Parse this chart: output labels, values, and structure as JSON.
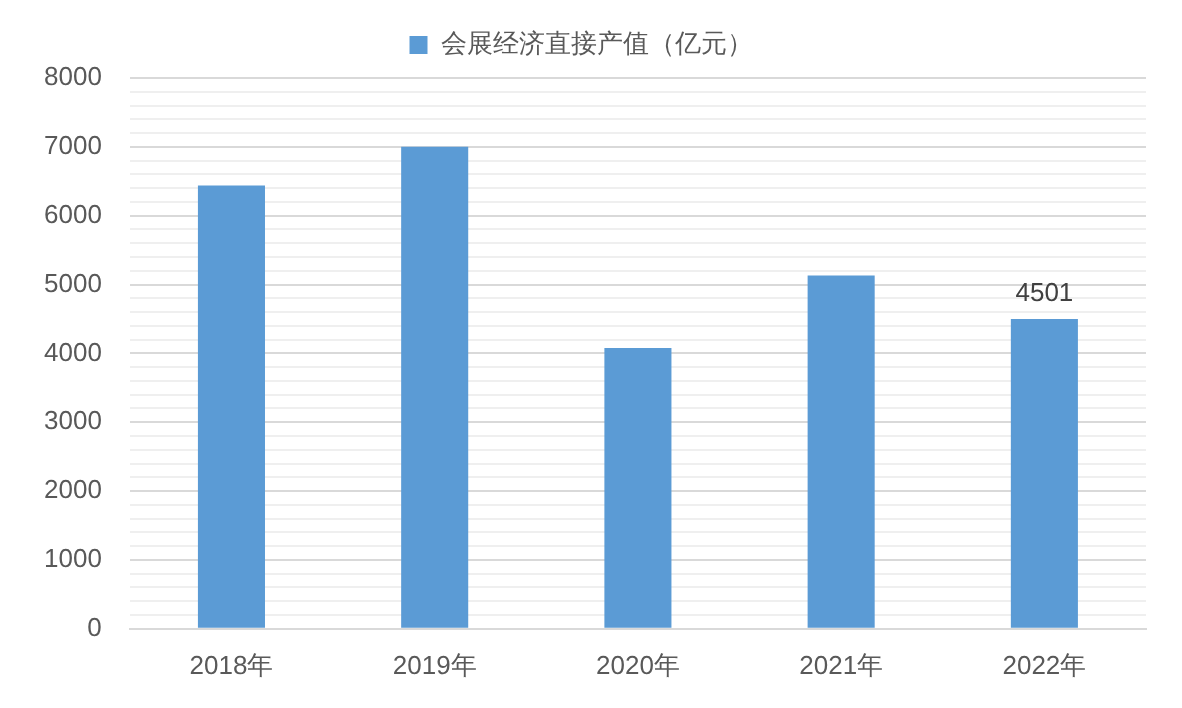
{
  "chart_data": {
    "type": "bar",
    "categories": [
      "2018年",
      "2019年",
      "2020年",
      "2021年",
      "2022年"
    ],
    "series": [
      {
        "name": "会展经济直接产值（亿元）",
        "color": "#5b9bd5",
        "values": [
          6440,
          7000,
          4080,
          5130,
          4501
        ],
        "value_labels": [
          null,
          null,
          null,
          null,
          "4501"
        ]
      }
    ],
    "ylim": [
      0,
      8000
    ],
    "yticks": [
      0,
      {
        "value": 200,
        "label": null
      },
      {
        "value": 400,
        "label": null
      },
      {
        "value": 600,
        "label": null
      },
      {
        "value": 800,
        "label": null
      },
      1000,
      {
        "value": 1200,
        "label": null
      },
      {
        "value": 1400,
        "label": null
      },
      {
        "value": 1600,
        "label": null
      },
      {
        "value": 1800,
        "label": null
      },
      2000,
      {
        "value": 2200,
        "label": null
      },
      {
        "value": 2400,
        "label": null
      },
      {
        "value": 2600,
        "label": null
      },
      {
        "value": 2800,
        "label": null
      },
      3000,
      {
        "value": 3200,
        "label": null
      },
      {
        "value": 3400,
        "label": null
      },
      {
        "value": 3600,
        "label": null
      },
      {
        "value": 3800,
        "label": null
      },
      4000,
      {
        "value": 4200,
        "label": null
      },
      {
        "value": 4400,
        "label": null
      },
      {
        "value": 4600,
        "label": null
      },
      {
        "value": 4800,
        "label": null
      },
      5000,
      {
        "value": 5200,
        "label": null
      },
      {
        "value": 5400,
        "label": null
      },
      {
        "value": 5600,
        "label": null
      },
      {
        "value": 5800,
        "label": null
      },
      6000,
      {
        "value": 6200,
        "label": null
      },
      {
        "value": 6400,
        "label": null
      },
      {
        "value": 6600,
        "label": null
      },
      {
        "value": 6800,
        "label": null
      },
      7000,
      {
        "value": 7200,
        "label": null
      },
      {
        "value": 7400,
        "label": null
      },
      {
        "value": 7600,
        "label": null
      },
      {
        "value": 7800,
        "label": null
      },
      8000
    ],
    "grid": "y",
    "legend": "top"
  }
}
